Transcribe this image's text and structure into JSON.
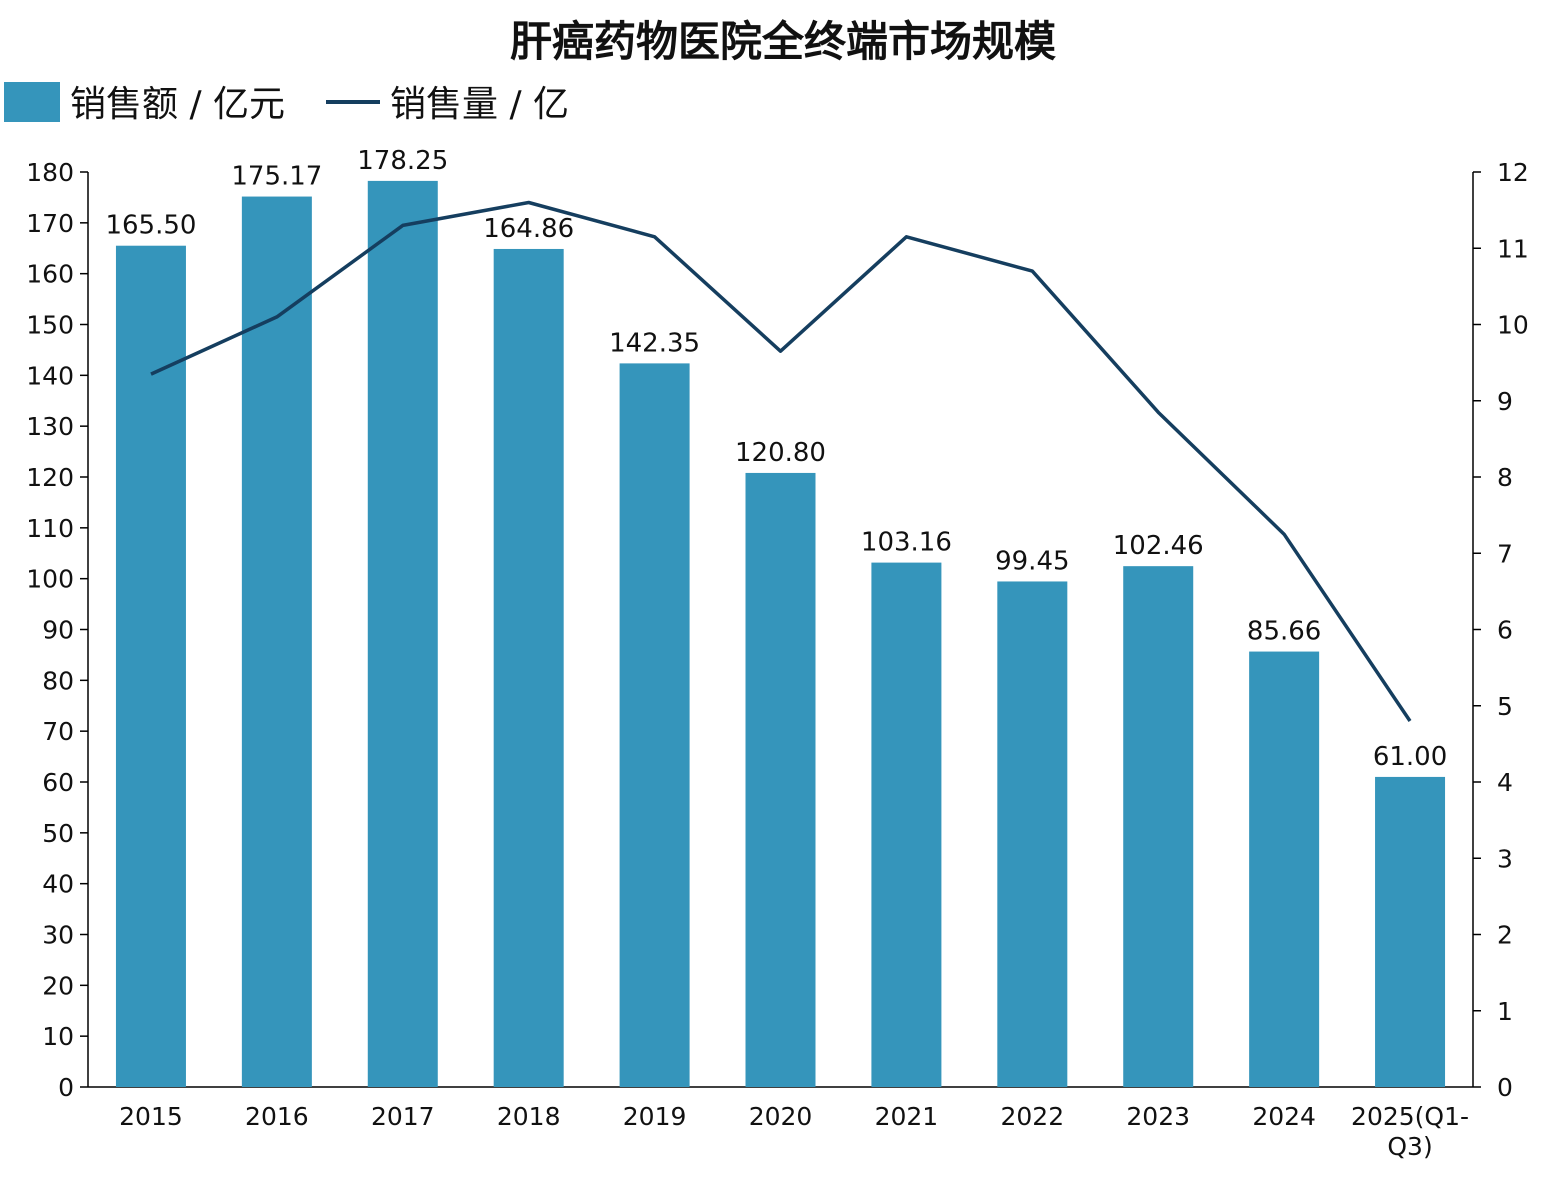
{
  "chart_data": {
    "type": "bar",
    "title": "肝癌药物医院全终端市场规模",
    "categories": [
      "2015",
      "2016",
      "2017",
      "2018",
      "2019",
      "2020",
      "2021",
      "2022",
      "2023",
      "2024",
      "2025(Q1-Q3)"
    ],
    "category_lines": [
      [
        "2015"
      ],
      [
        "2016"
      ],
      [
        "2017"
      ],
      [
        "2018"
      ],
      [
        "2019"
      ],
      [
        "2020"
      ],
      [
        "2021"
      ],
      [
        "2022"
      ],
      [
        "2023"
      ],
      [
        "2024"
      ],
      [
        "2025(Q1-",
        "Q3)"
      ]
    ],
    "series": [
      {
        "name": "销售额 / 亿元",
        "type": "bar",
        "axis": "left",
        "color": "#3595bb",
        "values": [
          165.5,
          175.17,
          178.25,
          164.86,
          142.35,
          120.8,
          103.16,
          99.45,
          102.46,
          85.66,
          61.0
        ],
        "labels": [
          "165.50",
          "175.17",
          "178.25",
          "164.86",
          "142.35",
          "120.80",
          "103.16",
          "99.45",
          "102.46",
          "85.66",
          "61.00"
        ]
      },
      {
        "name": "销售量 / 亿",
        "type": "line",
        "axis": "right",
        "color": "#153e5f",
        "values": [
          9.35,
          10.1,
          11.3,
          11.6,
          11.15,
          9.65,
          11.15,
          10.7,
          8.85,
          7.25,
          4.8
        ]
      }
    ],
    "y_left": {
      "min": 0,
      "max": 180,
      "step": 10
    },
    "y_right": {
      "min": 0,
      "max": 12,
      "step": 1
    },
    "legend_position": "top-left",
    "grid": false
  },
  "legend": {
    "bar_label": "销售额 / 亿元",
    "line_label": "销售量 / 亿"
  }
}
